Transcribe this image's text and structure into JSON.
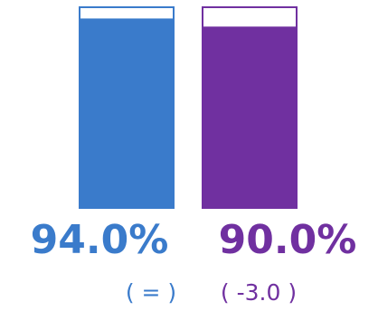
{
  "chart_data": {
    "type": "bar",
    "ylim": [
      0,
      100
    ],
    "grid": false,
    "series": [
      {
        "value": 94.0,
        "label": "94.0%",
        "change": "( = )",
        "color": "#3a7bcb",
        "outline": "#3a7bcb"
      },
      {
        "value": 90.0,
        "label": "90.0%",
        "change": "( -3.0 )",
        "color": "#7030a0",
        "outline": "#7030a0"
      }
    ]
  }
}
